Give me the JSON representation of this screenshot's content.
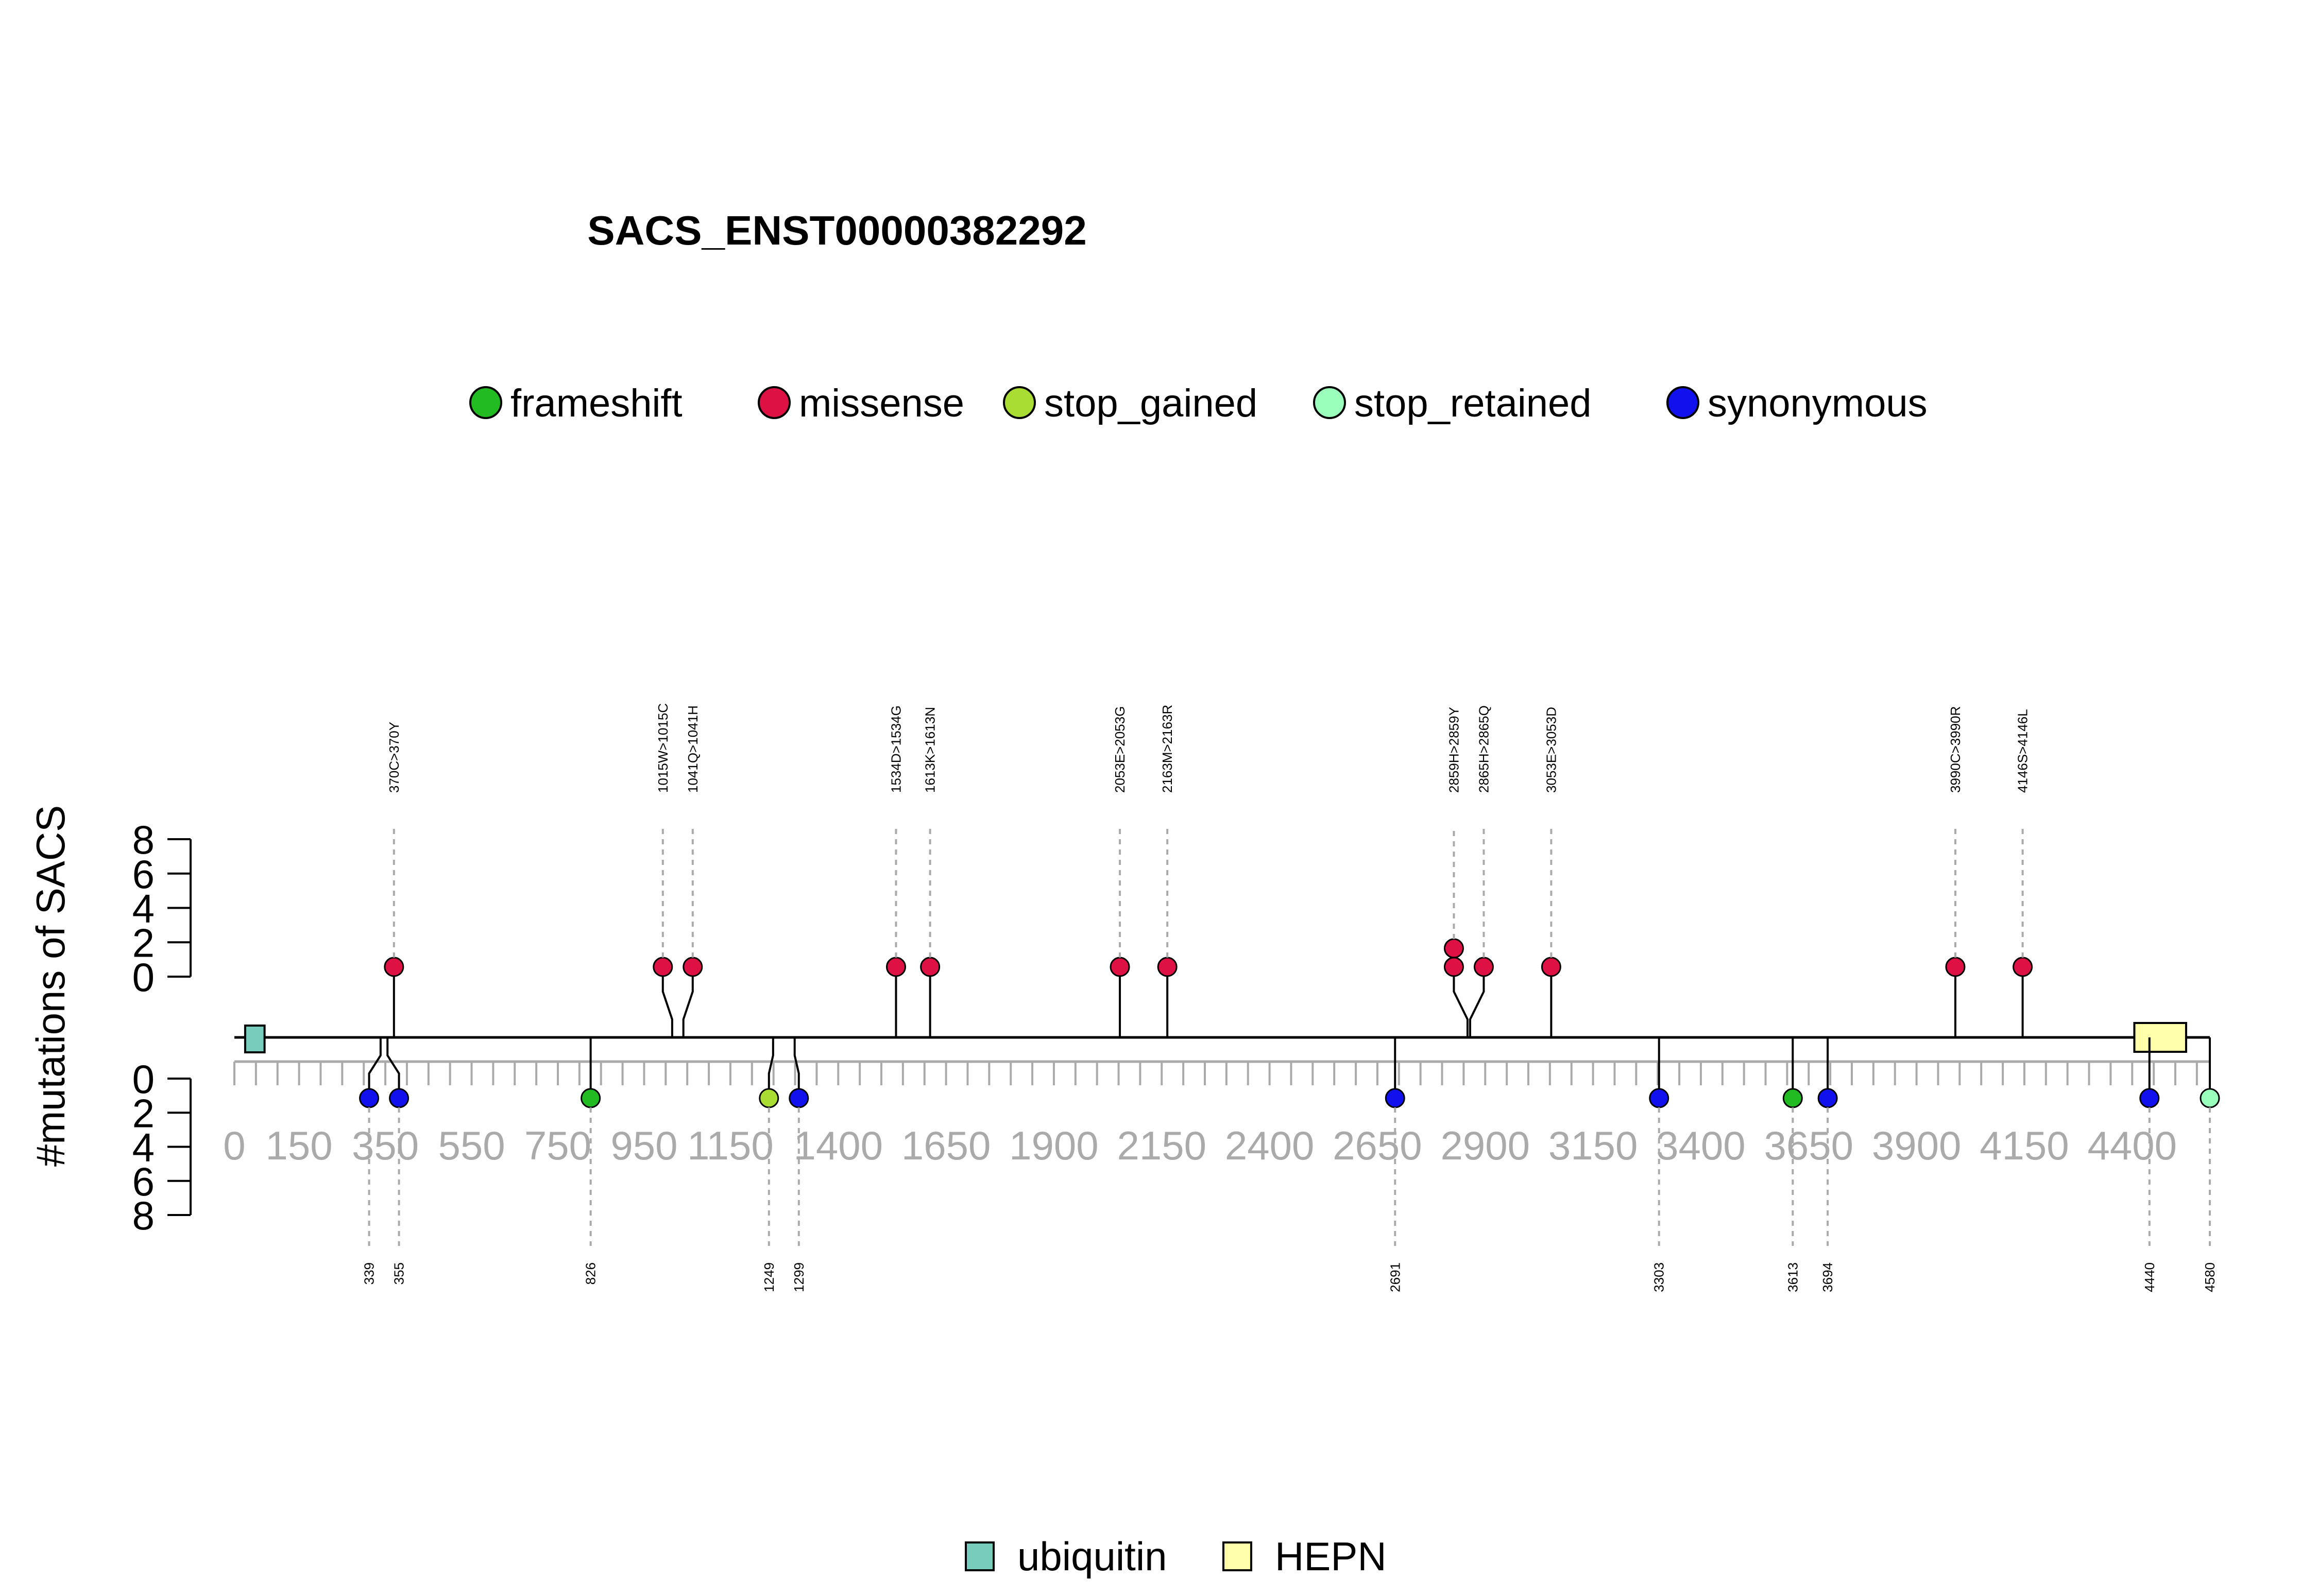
{
  "chart_data": {
    "type": "lollipop",
    "title": "SACS_ENST00000382292",
    "ylabel": "#mutations of SACS",
    "xlim": [
      0,
      4580
    ],
    "x_ticks": [
      0,
      150,
      350,
      550,
      750,
      950,
      1150,
      1400,
      1650,
      1900,
      2150,
      2400,
      2650,
      2900,
      3150,
      3400,
      3650,
      3900,
      4150,
      4400
    ],
    "y_ticks_top": [
      "8",
      "6",
      "4",
      "2",
      "0"
    ],
    "y_ticks_bottom": [
      "0",
      "2",
      "4",
      "6",
      "8"
    ],
    "legend_mutations": [
      {
        "name": "frameshift",
        "color": "#22BB22"
      },
      {
        "name": "missense",
        "color": "#DD1144"
      },
      {
        "name": "stop_gained",
        "color": "#AADD33"
      },
      {
        "name": "stop_retained",
        "color": "#99FFBB"
      },
      {
        "name": "synonymous",
        "color": "#1111EE"
      }
    ],
    "legend_domains": [
      {
        "name": "ubiquitin",
        "color": "#77CCBB"
      },
      {
        "name": "HEPN",
        "color": "#FFFFAA"
      }
    ],
    "domains": [
      {
        "name": "ubiquitin",
        "start": 25,
        "end": 70
      },
      {
        "name": "HEPN",
        "start": 4405,
        "end": 4525
      }
    ],
    "top_mutations": [
      {
        "position": 370,
        "label": "370C>370Y",
        "type": "missense",
        "count": 1
      },
      {
        "position": 1015,
        "label": "1015W>1015C",
        "type": "missense",
        "count": 1
      },
      {
        "position": 1041,
        "label": "1041Q>1041H",
        "type": "missense",
        "count": 1
      },
      {
        "position": 1534,
        "label": "1534D>1534G",
        "type": "missense",
        "count": 1
      },
      {
        "position": 1613,
        "label": "1613K>1613N",
        "type": "missense",
        "count": 1
      },
      {
        "position": 2053,
        "label": "2053E>2053G",
        "type": "missense",
        "count": 1
      },
      {
        "position": 2163,
        "label": "2163M>2163R",
        "type": "missense",
        "count": 1
      },
      {
        "position": 2859,
        "label": "2859H>2859Y",
        "type": "missense",
        "count": 2
      },
      {
        "position": 2865,
        "label": "2865H>2865Q",
        "type": "missense",
        "count": 1
      },
      {
        "position": 3053,
        "label": "3053E>3053D",
        "type": "missense",
        "count": 1
      },
      {
        "position": 3990,
        "label": "3990C>3990R",
        "type": "missense",
        "count": 1
      },
      {
        "position": 4146,
        "label": "4146S>4146L",
        "type": "missense",
        "count": 1
      }
    ],
    "bottom_mutations": [
      {
        "position": 339,
        "label": "339",
        "type": "synonymous",
        "count": 1
      },
      {
        "position": 355,
        "label": "355",
        "type": "synonymous",
        "count": 1
      },
      {
        "position": 826,
        "label": "826",
        "type": "frameshift",
        "count": 1
      },
      {
        "position": 1249,
        "label": "1249",
        "type": "stop_gained",
        "count": 1
      },
      {
        "position": 1299,
        "label": "1299",
        "type": "synonymous",
        "count": 1
      },
      {
        "position": 2691,
        "label": "2691",
        "type": "synonymous",
        "count": 1
      },
      {
        "position": 3303,
        "label": "3303",
        "type": "synonymous",
        "count": 1
      },
      {
        "position": 3613,
        "label": "3613",
        "type": "frameshift",
        "count": 1
      },
      {
        "position": 3694,
        "label": "3694",
        "type": "synonymous",
        "count": 1
      },
      {
        "position": 4440,
        "label": "4440",
        "type": "synonymous",
        "count": 1
      },
      {
        "position": 4580,
        "label": "4580",
        "type": "stop_retained",
        "count": 1
      }
    ]
  }
}
